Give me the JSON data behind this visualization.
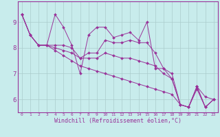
{
  "title": "",
  "xlabel": "Windchill (Refroidissement éolien,°C)",
  "bg_color": "#c8ecec",
  "line_color": "#993399",
  "grid_color": "#aacccc",
  "x_ticks": [
    0,
    1,
    2,
    3,
    4,
    5,
    6,
    7,
    8,
    9,
    10,
    11,
    12,
    13,
    14,
    15,
    16,
    17,
    18,
    19,
    20,
    21,
    22,
    23
  ],
  "y_ticks": [
    6,
    7,
    8,
    9
  ],
  "xlim": [
    -0.5,
    23.5
  ],
  "ylim": [
    5.5,
    9.8
  ],
  "lines": [
    [
      9.3,
      8.5,
      8.1,
      8.1,
      9.3,
      8.8,
      8.1,
      7.0,
      8.5,
      8.8,
      8.8,
      8.4,
      8.5,
      8.6,
      8.3,
      9.0,
      7.2,
      7.2,
      7.0,
      5.8,
      5.7,
      6.5,
      6.1,
      6.0
    ],
    [
      9.3,
      8.5,
      8.1,
      8.1,
      8.1,
      8.1,
      8.0,
      7.6,
      7.8,
      7.8,
      8.3,
      8.2,
      8.2,
      8.3,
      8.2,
      8.2,
      7.8,
      7.2,
      6.8,
      5.8,
      5.7,
      6.5,
      5.7,
      6.0
    ],
    [
      9.3,
      8.5,
      8.1,
      8.1,
      8.0,
      7.9,
      7.8,
      7.6,
      7.6,
      7.6,
      7.8,
      7.7,
      7.6,
      7.6,
      7.5,
      7.4,
      7.3,
      7.0,
      6.8,
      5.8,
      5.7,
      6.5,
      5.7,
      6.0
    ],
    [
      9.3,
      8.5,
      8.1,
      8.1,
      7.9,
      7.7,
      7.5,
      7.3,
      7.2,
      7.1,
      7.0,
      6.9,
      6.8,
      6.7,
      6.6,
      6.5,
      6.4,
      6.3,
      6.2,
      5.8,
      5.7,
      6.4,
      5.7,
      6.0
    ]
  ]
}
